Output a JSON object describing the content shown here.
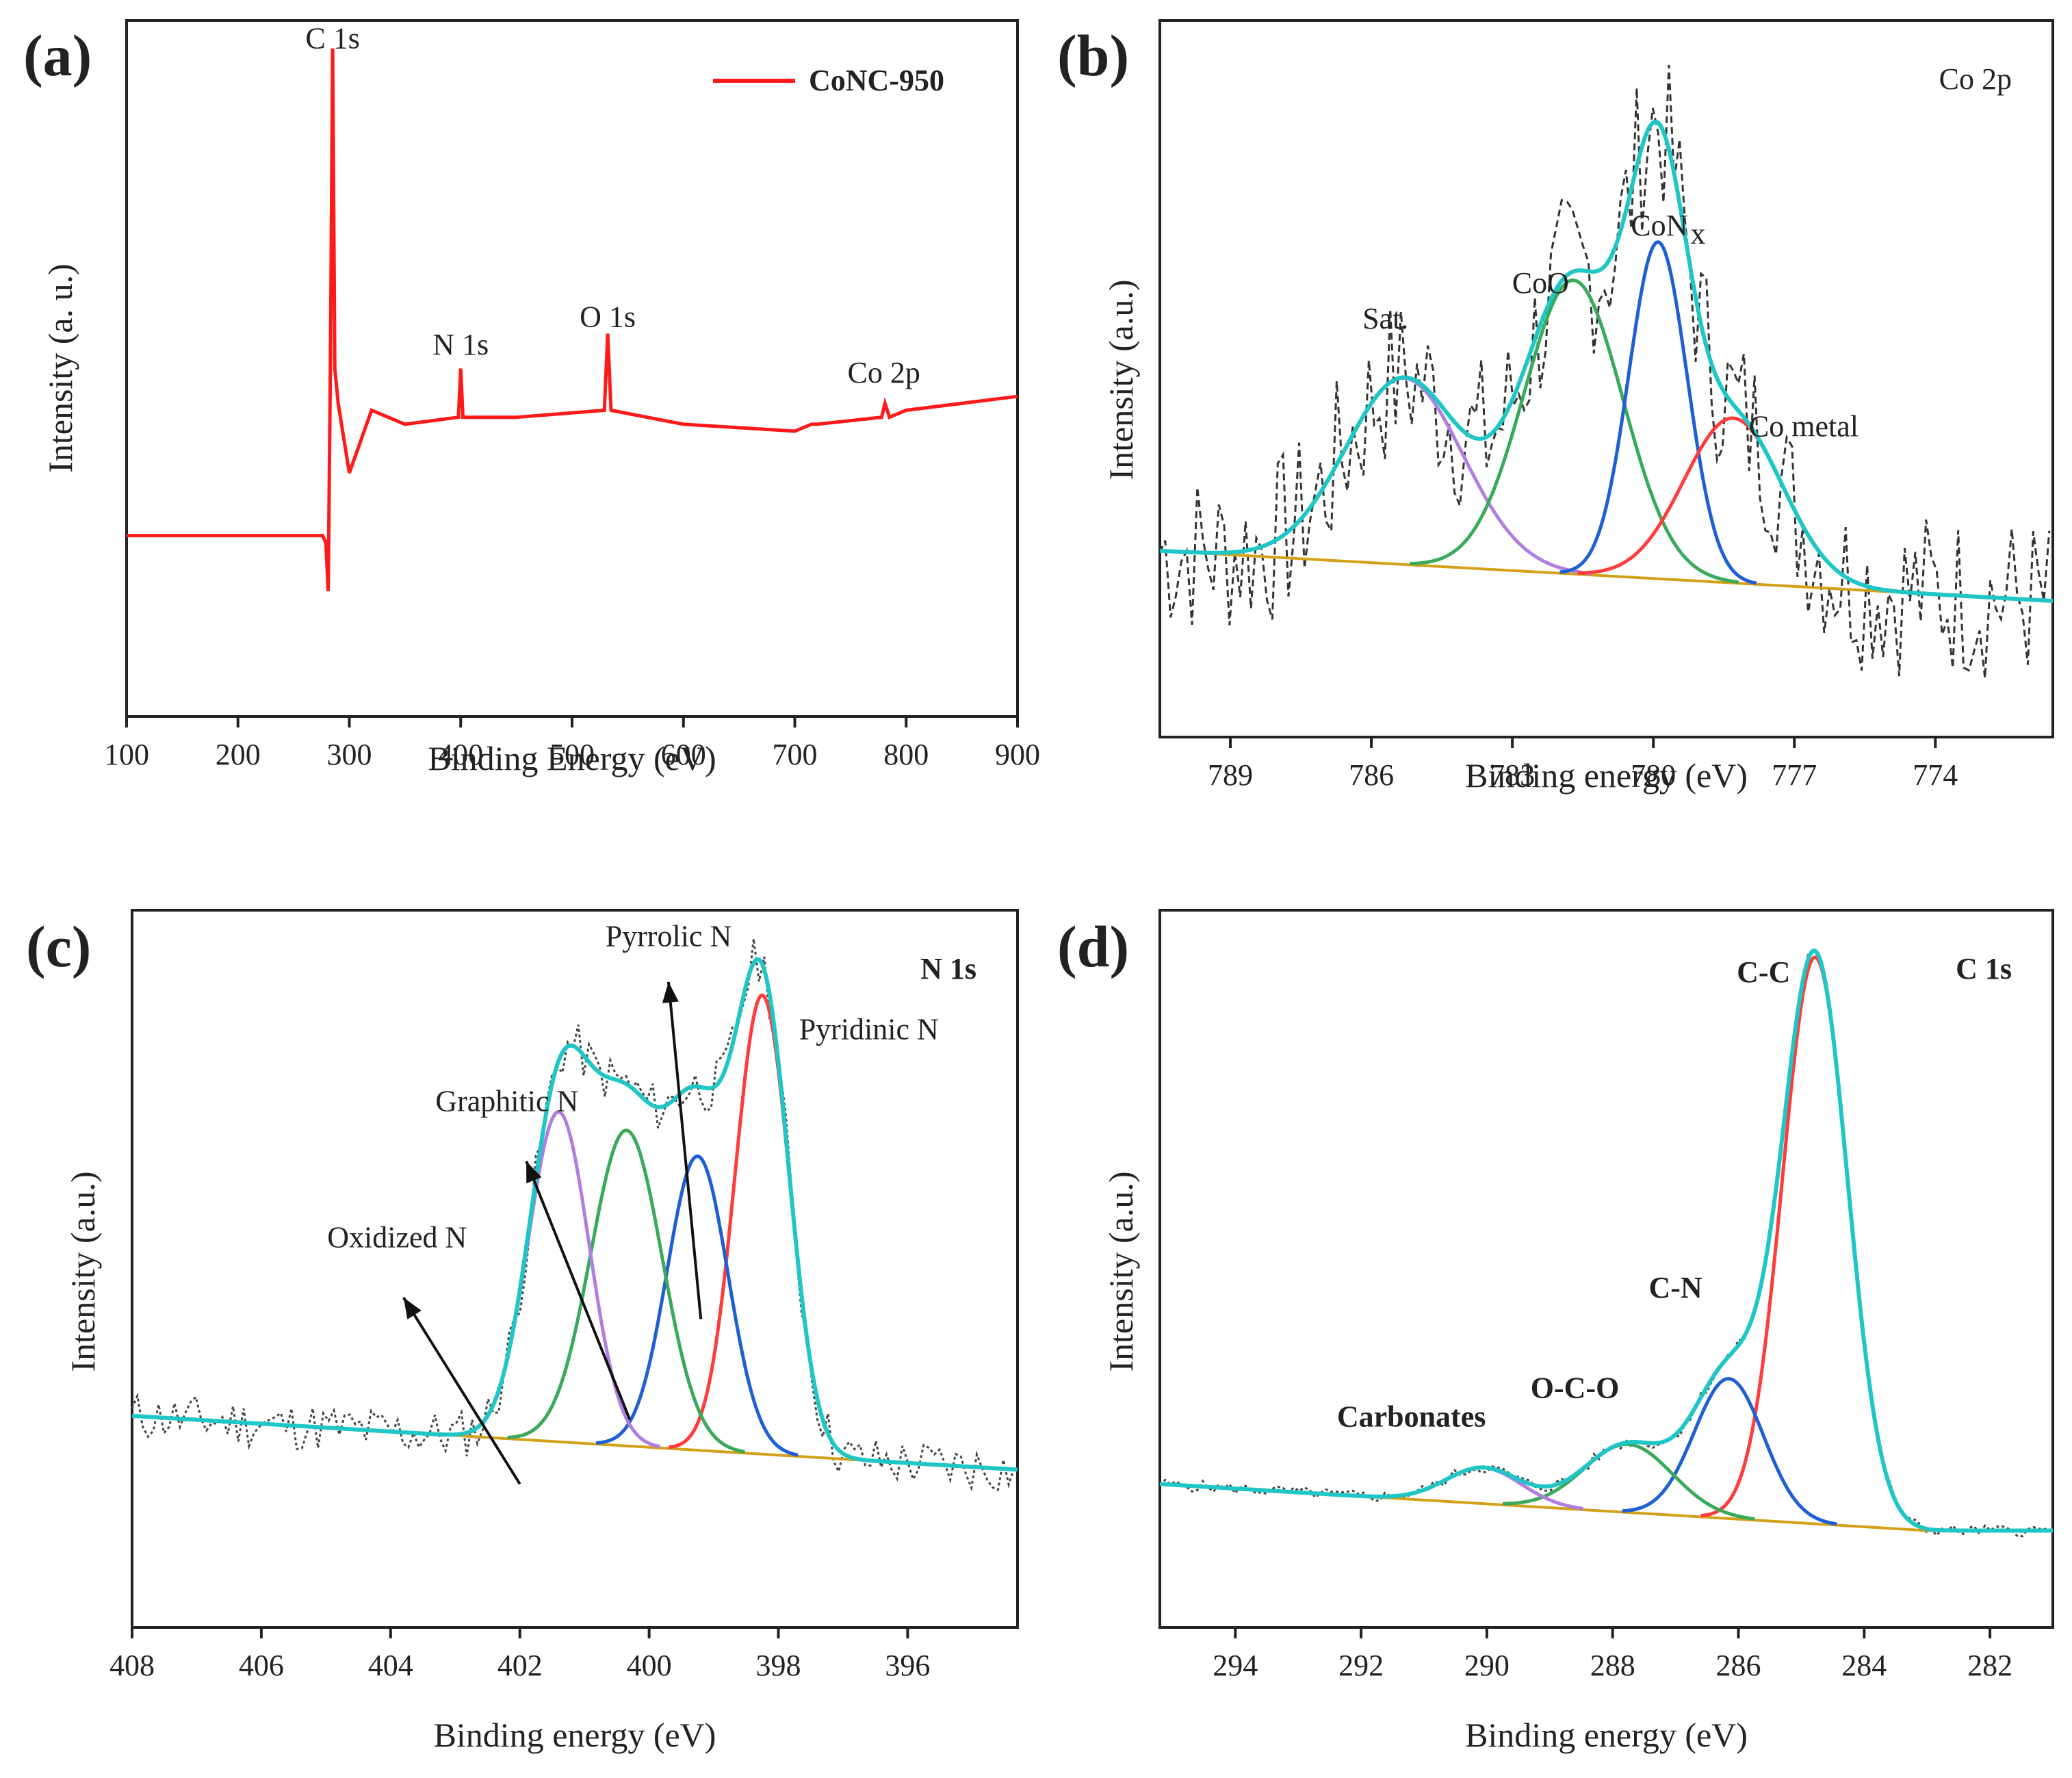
{
  "chart_data": [
    {
      "type": "line",
      "panel_label": "(a)",
      "title": "",
      "xlabel": "Binding Energy (eV)",
      "ylabel": "Intensity (a. u.)",
      "xlim": [
        100,
        900
      ],
      "ylim": [
        0,
        1
      ],
      "x_reversed": false,
      "xticks": [
        100,
        200,
        300,
        400,
        500,
        600,
        700,
        800,
        900
      ],
      "legend": {
        "entries": [
          {
            "name": "CoNC-950",
            "color": "#ff1a1a"
          }
        ],
        "position": "top-right"
      },
      "annotations": [
        {
          "text": "C 1s",
          "x": 285,
          "y": 0.96
        },
        {
          "text": "N 1s",
          "x": 400,
          "y": 0.52
        },
        {
          "text": "O 1s",
          "x": 532,
          "y": 0.56
        },
        {
          "text": "Co 2p",
          "x": 780,
          "y": 0.48
        }
      ],
      "series": [
        {
          "name": "CoNC-950",
          "color": "#ff1a1a",
          "kind": "survey",
          "x": [
            100,
            200,
            276,
            279,
            281,
            283,
            285,
            287,
            290,
            300,
            320,
            350,
            398,
            400,
            402,
            450,
            529,
            532,
            535,
            600,
            700,
            715,
            720,
            778,
            781,
            785,
            800,
            900
          ],
          "y": [
            0.26,
            0.26,
            0.26,
            0.25,
            0.18,
            0.5,
            0.96,
            0.5,
            0.45,
            0.35,
            0.44,
            0.42,
            0.43,
            0.5,
            0.43,
            0.43,
            0.44,
            0.55,
            0.44,
            0.42,
            0.41,
            0.42,
            0.42,
            0.43,
            0.45,
            0.43,
            0.44,
            0.46
          ]
        }
      ]
    },
    {
      "type": "line",
      "panel_label": "(b)",
      "title": "Co 2p",
      "xlabel": "Binding energy (eV)",
      "ylabel": "Intensity (a.u.)",
      "xlim": [
        790.5,
        771.5
      ],
      "ylim": [
        0,
        1
      ],
      "x_reversed": true,
      "xticks": [
        789,
        786,
        783,
        780,
        777,
        774
      ],
      "annotations": [
        {
          "text": "Sat.",
          "x": 785.7,
          "y": 0.57
        },
        {
          "text": "CoO",
          "x": 782.4,
          "y": 0.62
        },
        {
          "text": "CoN",
          "sub": "x",
          "x": 779.7,
          "y": 0.7
        },
        {
          "text": "Co metal",
          "x": 776.8,
          "y": 0.42
        }
      ],
      "baseline": {
        "x1": 790.5,
        "y1": 0.26,
        "x2": 771.5,
        "y2": 0.19
      },
      "raw": {
        "style": "dashed",
        "color": "#333333",
        "amplitude": 0.12,
        "seed": 7
      },
      "series": [
        {
          "name": "Sat.",
          "color": "#b07ee0",
          "center": 785.3,
          "height": 0.26,
          "width": 1.25
        },
        {
          "name": "CoO",
          "color": "#3aaa5a",
          "center": 781.7,
          "height": 0.41,
          "width": 1.05
        },
        {
          "name": "CoNx",
          "color": "#1f5fd6",
          "center": 779.9,
          "height": 0.47,
          "width": 0.62
        },
        {
          "name": "Co metal",
          "color": "#ff3b3b",
          "center": 778.3,
          "height": 0.23,
          "width": 1.05
        },
        {
          "name": "Envelope",
          "color": "#1fc6c6",
          "kind": "envelope"
        }
      ]
    },
    {
      "type": "line",
      "panel_label": "(c)",
      "title": "N 1s",
      "xlabel": "Binding energy (eV)",
      "ylabel": "Intensity (a.u.)",
      "xlim": [
        408,
        394.3
      ],
      "ylim": [
        0,
        1
      ],
      "x_reversed": true,
      "xticks": [
        408,
        406,
        404,
        402,
        400,
        398,
        396
      ],
      "annotations": [
        {
          "text": "Pyridinic N",
          "x": 396.6,
          "y": 0.82
        },
        {
          "text": "Pyrrolic N",
          "x": 399.7,
          "y": 0.95
        },
        {
          "text": "Graphitic N",
          "x": 402.2,
          "y": 0.72
        },
        {
          "text": "Oxidized N",
          "x": 403.9,
          "y": 0.53
        }
      ],
      "arrows": [
        {
          "from": [
            399.2,
            0.43
          ],
          "to": [
            399.7,
            0.9
          ]
        },
        {
          "from": [
            400.3,
            0.29
          ],
          "to": [
            401.9,
            0.65
          ]
        },
        {
          "from": [
            402.0,
            0.2
          ],
          "to": [
            403.8,
            0.46
          ]
        }
      ],
      "baseline": {
        "x1": 408,
        "y1": 0.295,
        "x2": 394.3,
        "y2": 0.22
      },
      "raw": {
        "style": "dotted",
        "color": "#444444",
        "amplitude": 0.035,
        "seed": 11
      },
      "series": [
        {
          "name": "Pyridinic N",
          "color": "#ff3b3b",
          "center": 398.25,
          "height": 0.64,
          "width": 0.42
        },
        {
          "name": "Pyrrolic N",
          "color": "#1f5fd6",
          "center": 399.25,
          "height": 0.41,
          "width": 0.47
        },
        {
          "name": "Graphitic N",
          "color": "#3aaa5a",
          "center": 400.35,
          "height": 0.44,
          "width": 0.55
        },
        {
          "name": "Oxidized N",
          "color": "#b07ee0",
          "center": 401.4,
          "height": 0.46,
          "width": 0.47
        },
        {
          "name": "Envelope",
          "color": "#1fc6c6",
          "kind": "envelope"
        }
      ]
    },
    {
      "type": "line",
      "panel_label": "(d)",
      "title": "C 1s",
      "xlabel": "Binding energy (eV)",
      "ylabel": "Intensity (a.u.)",
      "xlim": [
        295.2,
        281
      ],
      "ylim": [
        0,
        1
      ],
      "x_reversed": true,
      "xticks": [
        294,
        292,
        290,
        288,
        286,
        284,
        282
      ],
      "annotations": [
        {
          "text": "C-C",
          "x": 285.6,
          "y": 0.9
        },
        {
          "text": "C-N",
          "x": 287.0,
          "y": 0.46
        },
        {
          "text": "O-C-O",
          "x": 288.6,
          "y": 0.32
        },
        {
          "text": "Carbonates",
          "x": 291.2,
          "y": 0.28
        }
      ],
      "baseline": {
        "x1": 295.2,
        "y1": 0.2,
        "x2": 283.0,
        "y2": 0.135,
        "x3": 281,
        "y3": 0.135
      },
      "raw": {
        "style": "dotted",
        "color": "#444444",
        "amplitude": 0.008,
        "seed": 5
      },
      "series": [
        {
          "name": "C-C",
          "color": "#ff3b3b",
          "center": 284.78,
          "height": 0.79,
          "width": 0.52
        },
        {
          "name": "C-N",
          "color": "#1f5fd6",
          "center": 286.15,
          "height": 0.195,
          "width": 0.55
        },
        {
          "name": "O-C-O",
          "color": "#3aaa5a",
          "center": 287.75,
          "height": 0.095,
          "width": 0.7
        },
        {
          "name": "Carbonates",
          "color": "#b07ee0",
          "center": 290.05,
          "height": 0.05,
          "width": 0.6
        },
        {
          "name": "Envelope",
          "color": "#1fc6c6",
          "kind": "envelope"
        }
      ]
    }
  ],
  "colors": {
    "baseline": "#d4a017",
    "axis": "#222222"
  }
}
